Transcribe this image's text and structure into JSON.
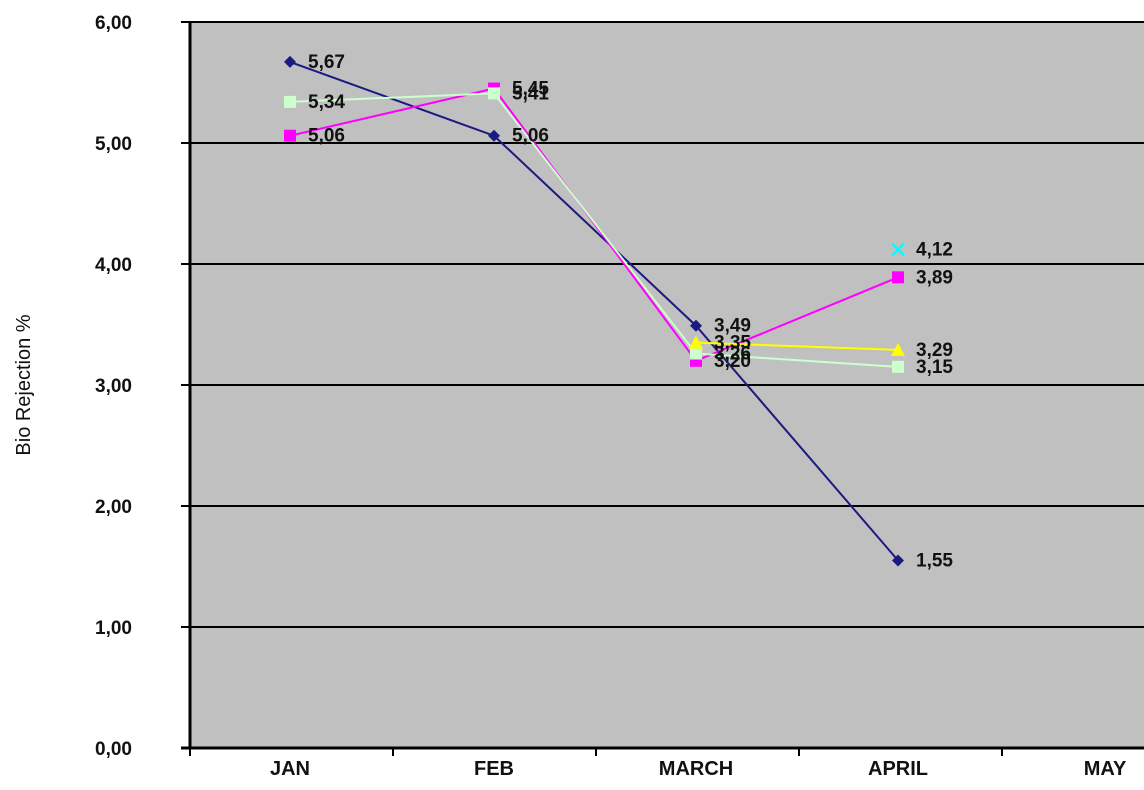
{
  "chart_data": {
    "type": "line",
    "title": "",
    "xlabel": "",
    "ylabel": "Bio Rejection %",
    "categories": [
      "JAN",
      "FEB",
      "MARCH",
      "APRIL",
      "MAY"
    ],
    "yticks": [
      "0,00",
      "1,00",
      "2,00",
      "3,00",
      "4,00",
      "5,00",
      "6,00"
    ],
    "ylim": [
      0,
      6
    ],
    "grid": true,
    "legend": "none",
    "plot_background": "#c0c0c0",
    "series": [
      {
        "color": "#1a1a80",
        "marker": "diamond",
        "values": [
          5.67,
          5.06,
          3.49,
          1.55,
          null
        ],
        "labels": [
          "5,67",
          "5,06",
          "3,49",
          "1,55",
          ""
        ]
      },
      {
        "color": "#ff00ff",
        "marker": "square",
        "values": [
          5.06,
          5.45,
          3.2,
          3.89,
          null
        ],
        "labels": [
          "5,06",
          "5,45",
          "3,20",
          "3,89",
          ""
        ]
      },
      {
        "color": "#ccffcc",
        "marker": "square",
        "values": [
          5.34,
          5.41,
          3.26,
          3.15,
          null
        ],
        "labels": [
          "5,34",
          "5,41",
          "3,26",
          "3,15",
          ""
        ]
      },
      {
        "color": "#ffff00",
        "marker": "triangle",
        "values": [
          null,
          null,
          3.35,
          3.29,
          null
        ],
        "labels": [
          "",
          "",
          "3,35",
          "3,29",
          ""
        ]
      },
      {
        "color": "#00ffff",
        "marker": "x",
        "values": [
          null,
          null,
          null,
          4.12,
          null
        ],
        "labels": [
          "",
          "",
          "",
          "4,12",
          ""
        ]
      }
    ]
  }
}
